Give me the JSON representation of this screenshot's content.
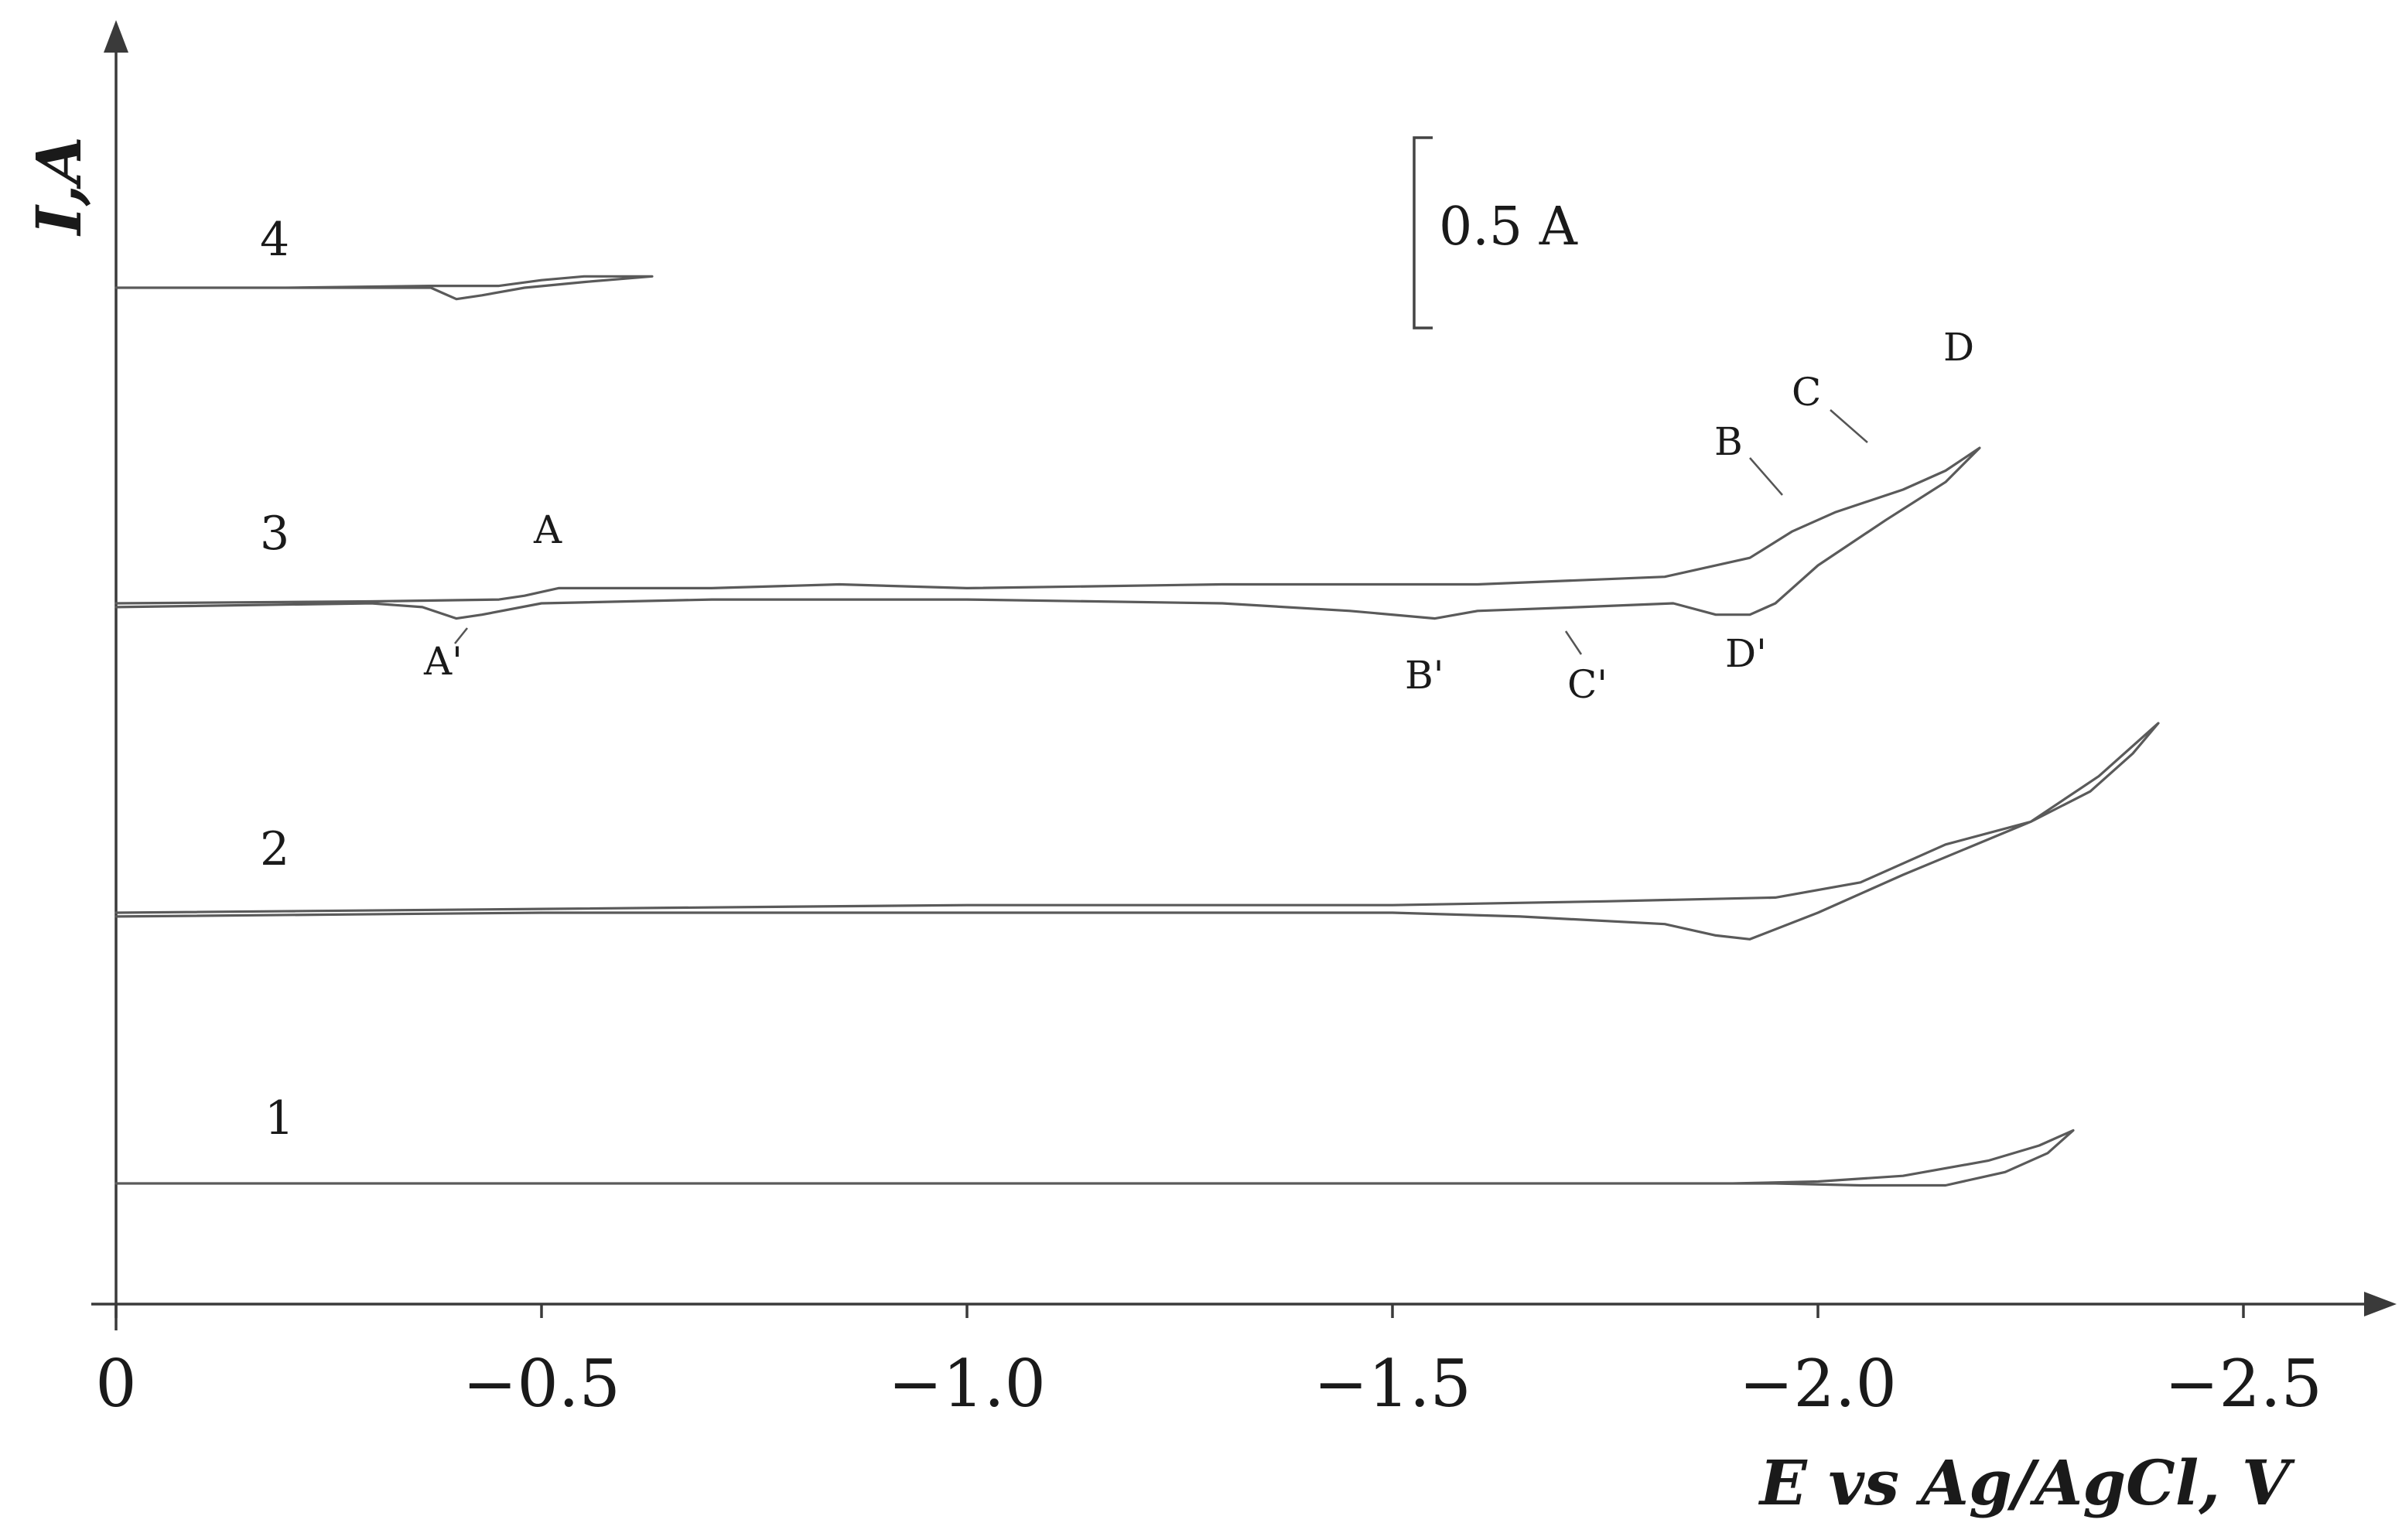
{
  "chart_data": {
    "type": "line",
    "title": "",
    "xlabel": "E vs Ag/AgCl, V",
    "ylabel": "I,A",
    "xlim": [
      0,
      -2.7
    ],
    "x_ticks": [
      "0",
      "−0.5",
      "−1.0",
      "−1.5",
      "−2.0",
      "−2.5"
    ],
    "x_tick_values": [
      0,
      -0.5,
      -1.0,
      -1.5,
      -2.0,
      -2.5
    ],
    "y_unit_note": "curves vertically offset; scale bar = 0.5 A",
    "scale_bar": {
      "label": "0.5 A",
      "value": 0.5
    },
    "curve_color": "#5a5a5a",
    "axis_color": "#3a3a3a",
    "series": [
      {
        "name": "1",
        "baseline": 0,
        "points": [
          [
            0,
            0
          ],
          [
            -0.5,
            0
          ],
          [
            -1.0,
            0
          ],
          [
            -1.5,
            0
          ],
          [
            -1.9,
            0
          ],
          [
            -2.0,
            0.005
          ],
          [
            -2.1,
            0.02
          ],
          [
            -2.2,
            0.06
          ],
          [
            -2.26,
            0.1
          ],
          [
            -2.3,
            0.14
          ],
          [
            -2.27,
            0.08
          ],
          [
            -2.22,
            0.03
          ],
          [
            -2.15,
            -0.005
          ],
          [
            -2.05,
            -0.005
          ],
          [
            -1.95,
            0
          ],
          [
            -1.5,
            0
          ],
          [
            -1.0,
            0
          ],
          [
            -0.5,
            0
          ],
          [
            0,
            0
          ]
        ]
      },
      {
        "name": "2",
        "baseline": 0,
        "points": [
          [
            0,
            0
          ],
          [
            -0.5,
            0.01
          ],
          [
            -1.0,
            0.02
          ],
          [
            -1.5,
            0.02
          ],
          [
            -1.75,
            0.03
          ],
          [
            -1.95,
            0.04
          ],
          [
            -2.05,
            0.08
          ],
          [
            -2.15,
            0.18
          ],
          [
            -2.25,
            0.24
          ],
          [
            -2.32,
            0.32
          ],
          [
            -2.37,
            0.42
          ],
          [
            -2.4,
            0.5
          ],
          [
            -2.33,
            0.36
          ],
          [
            -2.25,
            0.24
          ],
          [
            -2.1,
            0.1
          ],
          [
            -2.0,
            0.0
          ],
          [
            -1.92,
            -0.07
          ],
          [
            -1.88,
            -0.06
          ],
          [
            -1.82,
            -0.03
          ],
          [
            -1.65,
            -0.01
          ],
          [
            -1.5,
            0.0
          ],
          [
            -1.0,
            0.0
          ],
          [
            -0.5,
            0.0
          ],
          [
            0,
            -0.01
          ]
        ]
      },
      {
        "name": "3",
        "baseline": 0,
        "points": [
          [
            0,
            0
          ],
          [
            -0.3,
            0.005
          ],
          [
            -0.45,
            0.01
          ],
          [
            -0.48,
            0.02
          ],
          [
            -0.52,
            0.04
          ],
          [
            -0.7,
            0.04
          ],
          [
            -0.85,
            0.05
          ],
          [
            -1.0,
            0.04
          ],
          [
            -1.3,
            0.05
          ],
          [
            -1.6,
            0.05
          ],
          [
            -1.82,
            0.07
          ],
          [
            -1.92,
            0.12
          ],
          [
            -1.97,
            0.19
          ],
          [
            -2.02,
            0.24
          ],
          [
            -2.1,
            0.3
          ],
          [
            -2.15,
            0.35
          ],
          [
            -2.19,
            0.41
          ],
          [
            -2.15,
            0.32
          ],
          [
            -2.08,
            0.22
          ],
          [
            -2.0,
            0.1
          ],
          [
            -1.95,
            0.0
          ],
          [
            -1.92,
            -0.03
          ],
          [
            -1.88,
            -0.03
          ],
          [
            -1.83,
            0.0
          ],
          [
            -1.72,
            -0.01
          ],
          [
            -1.6,
            -0.02
          ],
          [
            -1.55,
            -0.04
          ],
          [
            -1.45,
            -0.02
          ],
          [
            -1.3,
            0.0
          ],
          [
            -1.0,
            0.01
          ],
          [
            -0.7,
            0.01
          ],
          [
            -0.5,
            0.0
          ],
          [
            -0.43,
            -0.03
          ],
          [
            -0.4,
            -0.04
          ],
          [
            -0.36,
            -0.01
          ],
          [
            -0.3,
            0.0
          ],
          [
            0,
            -0.01
          ]
        ]
      },
      {
        "name": "4",
        "baseline": 0,
        "points": [
          [
            0,
            0
          ],
          [
            -0.2,
            0
          ],
          [
            -0.37,
            0.0
          ],
          [
            -0.4,
            -0.03
          ],
          [
            -0.43,
            -0.02
          ],
          [
            -0.48,
            0.0
          ],
          [
            -0.55,
            0.015
          ],
          [
            -0.63,
            0.03
          ],
          [
            -0.55,
            0.03
          ],
          [
            -0.5,
            0.02
          ],
          [
            -0.45,
            0.005
          ],
          [
            -0.37,
            0.005
          ],
          [
            -0.2,
            0.0
          ],
          [
            0,
            0.0
          ]
        ]
      }
    ],
    "peak_labels": {
      "series_3": [
        "A",
        "A'",
        "B",
        "B'",
        "C",
        "C'",
        "D",
        "D'"
      ]
    }
  }
}
